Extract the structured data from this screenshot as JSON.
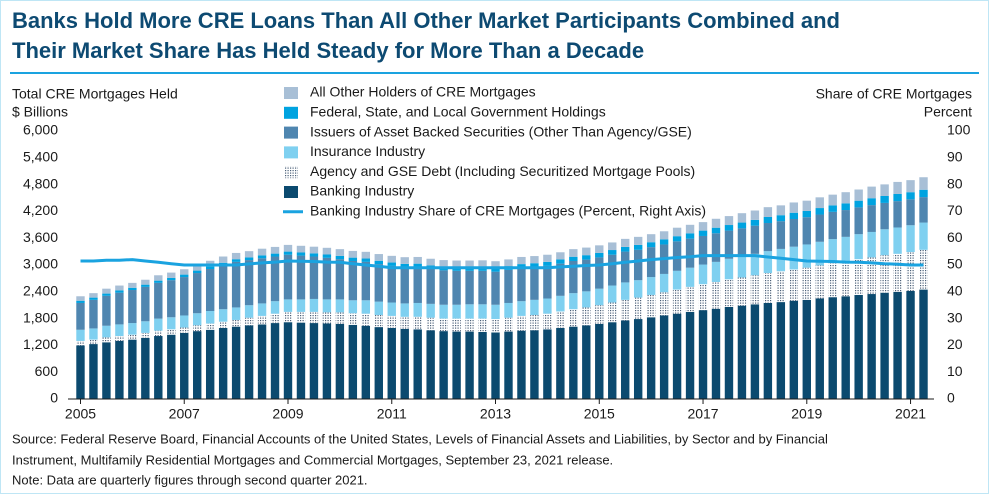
{
  "chart_data": {
    "type": "bar",
    "stacked": true,
    "title": [
      "Banks Hold More CRE Loans Than All Other Market Participants Combined and",
      "Their Market Share Has Held Steady for More Than a Decade"
    ],
    "y_label": [
      "Total CRE Mortgages Held",
      "$ Billions"
    ],
    "y2_label": [
      "Share of CRE Mortgages",
      "Percent"
    ],
    "categories": [
      "2005",
      null,
      null,
      null,
      null,
      null,
      null,
      null,
      "2007",
      null,
      null,
      null,
      null,
      null,
      null,
      null,
      "2009",
      null,
      null,
      null,
      null,
      null,
      null,
      null,
      "2011",
      null,
      null,
      null,
      null,
      null,
      null,
      null,
      "2013",
      null,
      null,
      null,
      null,
      null,
      null,
      null,
      "2015",
      null,
      null,
      null,
      null,
      null,
      null,
      null,
      "2017",
      null,
      null,
      null,
      null,
      null,
      null,
      null,
      "2019",
      null,
      null,
      null,
      null,
      null,
      null,
      null,
      "2021",
      null
    ],
    "ylim": [
      0,
      6000
    ],
    "yticks": [
      0,
      600,
      {
        "value": 1200,
        "label": "1,200"
      },
      {
        "value": 1800,
        "label": "1,800"
      },
      {
        "value": 2400,
        "label": "2,400"
      },
      {
        "value": 3000,
        "label": "3,000"
      },
      {
        "value": 3600,
        "label": "3,600"
      },
      {
        "value": 4200,
        "label": "4,200"
      },
      {
        "value": 4800,
        "label": "4,800"
      },
      {
        "value": 5400,
        "label": "5,400"
      },
      {
        "value": 6000,
        "label": "6,000"
      }
    ],
    "y2lim": [
      0,
      100
    ],
    "y2ticks": [
      0,
      10,
      20,
      30,
      40,
      50,
      60,
      70,
      80,
      90,
      100
    ],
    "series": [
      {
        "name": "Banking Industry",
        "color": "#0b4a6f",
        "values": [
          1200,
          1230,
          1270,
          1300,
          1330,
          1370,
          1410,
          1440,
          1480,
          1520,
          1550,
          1590,
          1620,
          1650,
          1670,
          1700,
          1720,
          1710,
          1700,
          1690,
          1680,
          1660,
          1640,
          1610,
          1590,
          1570,
          1560,
          1540,
          1520,
          1510,
          1510,
          1500,
          1490,
          1510,
          1530,
          1540,
          1560,
          1590,
          1620,
          1650,
          1680,
          1720,
          1760,
          1790,
          1830,
          1870,
          1910,
          1950,
          1990,
          2020,
          2060,
          2090,
          2120,
          2150,
          2170,
          2200,
          2220,
          2250,
          2280,
          2300,
          2330,
          2350,
          2380,
          2400,
          2420,
          2450
        ]
      },
      {
        "name": "Agency and GSE Debt (Including Securitized Mortgage Pools)",
        "color": "#4a5f78",
        "hatch": "dotted",
        "values": [
          100,
          100,
          110,
          110,
          110,
          110,
          120,
          120,
          120,
          130,
          140,
          140,
          150,
          170,
          190,
          210,
          230,
          240,
          250,
          250,
          260,
          260,
          270,
          270,
          270,
          270,
          280,
          280,
          280,
          290,
          290,
          300,
          300,
          310,
          330,
          340,
          350,
          370,
          390,
          400,
          420,
          440,
          460,
          480,
          500,
          520,
          540,
          560,
          580,
          600,
          620,
          630,
          650,
          670,
          690,
          700,
          720,
          740,
          760,
          780,
          800,
          820,
          840,
          850,
          870,
          890
        ]
      },
      {
        "name": "Insurance Industry",
        "color": "#7fd0f0",
        "values": [
          250,
          250,
          260,
          260,
          260,
          260,
          270,
          270,
          270,
          270,
          280,
          280,
          280,
          280,
          280,
          280,
          280,
          280,
          290,
          290,
          290,
          290,
          300,
          300,
          300,
          300,
          310,
          310,
          310,
          310,
          320,
          320,
          320,
          330,
          330,
          340,
          340,
          350,
          360,
          360,
          370,
          380,
          390,
          390,
          400,
          410,
          420,
          430,
          440,
          450,
          460,
          470,
          480,
          490,
          500,
          510,
          520,
          530,
          540,
          550,
          560,
          570,
          580,
          590,
          600,
          610
        ]
      },
      {
        "name": "Issuers of Asset Backed Securities (Other Than Agency/GSE)",
        "color": "#4f86b0",
        "values": [
          600,
          640,
          670,
          710,
          740,
          770,
          800,
          830,
          860,
          900,
          940,
          980,
          1020,
          1010,
          1010,
          1000,
          1000,
          980,
          950,
          930,
          900,
          880,
          860,
          840,
          820,
          810,
          800,
          780,
          770,
          760,
          750,
          750,
          740,
          740,
          740,
          730,
          730,
          720,
          720,
          710,
          700,
          690,
          690,
          680,
          670,
          660,
          660,
          650,
          640,
          640,
          630,
          630,
          630,
          630,
          620,
          620,
          610,
          610,
          610,
          600,
          600,
          600,
          590,
          590,
          580,
          570
        ]
      },
      {
        "name": "Federal, State, and Local Government Holdings",
        "color": "#00a3e0",
        "values": [
          50,
          50,
          50,
          50,
          50,
          50,
          50,
          50,
          55,
          55,
          55,
          60,
          60,
          60,
          65,
          65,
          70,
          70,
          70,
          75,
          75,
          75,
          75,
          75,
          75,
          75,
          80,
          80,
          80,
          80,
          80,
          85,
          85,
          85,
          90,
          90,
          90,
          95,
          95,
          100,
          100,
          105,
          105,
          110,
          110,
          115,
          115,
          120,
          120,
          125,
          125,
          130,
          130,
          135,
          135,
          140,
          140,
          145,
          145,
          150,
          150,
          155,
          155,
          160,
          160,
          165
        ]
      },
      {
        "name": "All Other Holders of CRE Mortgages",
        "color": "#a8bfd6",
        "values": [
          100,
          100,
          110,
          110,
          110,
          110,
          120,
          120,
          120,
          130,
          130,
          140,
          140,
          140,
          150,
          150,
          150,
          150,
          150,
          150,
          150,
          150,
          150,
          150,
          150,
          150,
          150,
          150,
          150,
          150,
          150,
          150,
          150,
          150,
          160,
          160,
          160,
          160,
          170,
          170,
          170,
          170,
          180,
          180,
          180,
          180,
          190,
          190,
          190,
          200,
          200,
          210,
          210,
          220,
          220,
          230,
          230,
          240,
          240,
          250,
          250,
          260,
          260,
          270,
          270,
          280
        ]
      },
      {
        "name": "Banking Industry Share of CRE Mortgages (Percent, Right Axis)",
        "color": "#1aa3e0",
        "type": "line",
        "axis": "y2",
        "values": [
          51.5,
          51.5,
          51.8,
          51.8,
          52,
          51.5,
          51,
          50.5,
          50,
          50,
          50,
          50,
          50,
          50.4,
          50.8,
          51.1,
          51.5,
          51.4,
          51.3,
          51.1,
          51,
          50.5,
          50,
          49.5,
          49,
          49,
          49,
          49,
          49,
          49,
          49,
          49,
          49,
          49,
          49,
          49,
          49,
          49.3,
          49.5,
          49.8,
          50,
          50.5,
          51,
          51.5,
          52,
          52.4,
          52.8,
          53.1,
          53.5,
          53.5,
          53.5,
          53.5,
          53.5,
          53,
          52.5,
          52,
          51.5,
          51.4,
          51.3,
          51.1,
          51,
          50.8,
          50.5,
          50.3,
          50,
          50
        ]
      }
    ],
    "source": [
      "Source: Federal Reserve Board, Financial Accounts of the United States, Levels of Financial Assets and Liabilities, by Sector and by Financial",
      "Instrument, Multifamily Residential Mortgages and Commercial Mortgages, September 23, 2021 release."
    ],
    "note": "Note: Data are quarterly figures through second quarter 2021."
  }
}
